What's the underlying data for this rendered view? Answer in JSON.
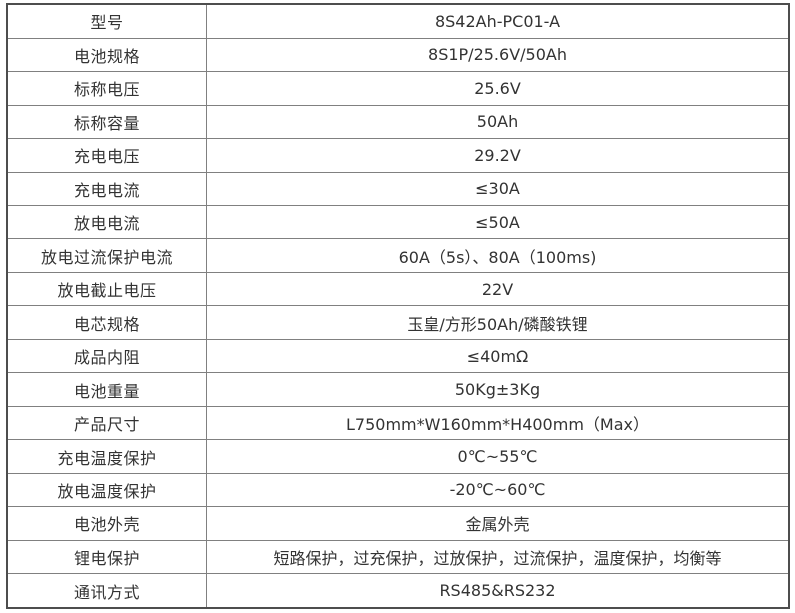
{
  "colors": {
    "background": "#ffffff",
    "grid_line": "#808080",
    "outer_border": "#4d4d4d",
    "text": "#333333"
  },
  "table": {
    "rows": [
      {
        "label": "型号",
        "value": "8S42Ah-PC01-A"
      },
      {
        "label": "电池规格",
        "value": "8S1P/25.6V/50Ah"
      },
      {
        "label": "标称电压",
        "value": "25.6V"
      },
      {
        "label": "标称容量",
        "value": "50Ah"
      },
      {
        "label": "充电电压",
        "value": "29.2V"
      },
      {
        "label": "充电电流",
        "value": "≤30A"
      },
      {
        "label": "放电电流",
        "value": "≤50A"
      },
      {
        "label": "放电过流保护电流",
        "value": "60A（5s）、80A（100ms)"
      },
      {
        "label": "放电截止电压",
        "value": "22V"
      },
      {
        "label": "电芯规格",
        "value": "玉皇/方形50Ah/磷酸铁锂"
      },
      {
        "label": "成品内阻",
        "value": "≤40mΩ"
      },
      {
        "label": "电池重量",
        "value": "50Kg±3Kg"
      },
      {
        "label": "产品尺寸",
        "value": "L750mm*W160mm*H400mm（Max）"
      },
      {
        "label": "充电温度保护",
        "value": "0℃~55℃"
      },
      {
        "label": "放电温度保护",
        "value": "-20℃~60℃"
      },
      {
        "label": "电池外壳",
        "value": "金属外壳"
      },
      {
        "label": "锂电保护",
        "value": "短路保护，过充保护，过放保护，过流保护，温度保护，均衡等"
      },
      {
        "label": "通讯方式",
        "value": "RS485&RS232"
      }
    ]
  }
}
